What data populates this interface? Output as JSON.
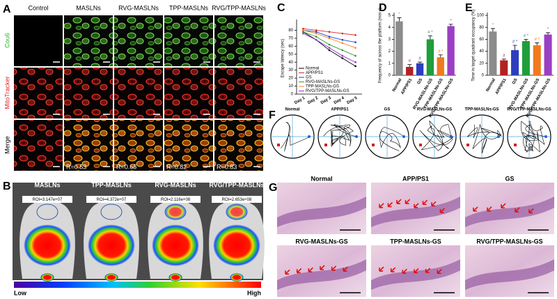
{
  "panel_letters": [
    "A",
    "B",
    "C",
    "D",
    "E",
    "F",
    "G"
  ],
  "panel_a": {
    "columns": [
      "Control",
      "MASLNs",
      "RVG-MASLNs",
      "TPP-MASLNs",
      "RVG/TPP-MASLNs"
    ],
    "rows": [
      "Cou6",
      "MitoTracker",
      "Merge"
    ],
    "r_values": [
      "R=0.53",
      "R=0.65",
      "R=0.82",
      "R=0.83"
    ]
  },
  "panel_b": {
    "labels": [
      "MASLNs",
      "TPP-MASLNs",
      "RVG-MASLNs",
      "RVG/TPP-MASLNs"
    ],
    "roi": [
      "ROI=3.147e+07",
      "ROI=4.372e+07",
      "ROI=2.116e+08",
      "ROI=2.653e+08"
    ],
    "scale": [
      "Low",
      "High"
    ]
  },
  "panel_f": {
    "labels": [
      "Normal",
      "APP/PS1",
      "GS",
      "RVG-MASLNs-GS",
      "TPP-MASLNs-GS",
      "RVG/TPP-MASLNs-GS"
    ]
  },
  "panel_g": {
    "labels": [
      "Normal",
      "APP/PS1",
      "GS",
      "RVG-MASLNs-GS",
      "TPP-MASLNs-GS",
      "RVG/TPP-MASLNs-GS"
    ]
  },
  "chart_data": [
    {
      "type": "line",
      "y_label": "Escape latency (sec)",
      "categories": [
        "Day 1",
        "Day 2",
        "Day 3",
        "Day 4",
        "Day 5"
      ],
      "ylim": [
        0,
        90
      ],
      "yticks": [
        0,
        10,
        20,
        30,
        40,
        50,
        60,
        70,
        80
      ],
      "series": [
        {
          "name": "Normal",
          "color": "#000000",
          "values": [
            78,
            68,
            55,
            45,
            35
          ]
        },
        {
          "name": "APP/PS1",
          "color": "#d62728",
          "values": [
            82,
            80,
            78,
            76,
            74
          ]
        },
        {
          "name": "GS",
          "color": "#1f3fd6",
          "values": [
            80,
            78,
            72,
            68,
            65
          ]
        },
        {
          "name": "RVG-MASLNs-GS",
          "color": "#2ca02c",
          "values": [
            78,
            72,
            62,
            55,
            48
          ]
        },
        {
          "name": "TPP-MASLNs-GS",
          "color": "#ff7f0e",
          "values": [
            80,
            76,
            70,
            64,
            58
          ]
        },
        {
          "name": "RVG/TPP-MASLNs-GS",
          "color": "#9b30d9",
          "values": [
            76,
            68,
            58,
            48,
            40
          ]
        }
      ]
    },
    {
      "type": "bar",
      "y_label": "Frequency of across the platform (min⁻¹)",
      "categories": [
        "Normal",
        "APP/PS1",
        "GS",
        "RVG-MASLNs-GS",
        "TPP-MASLNs-GS",
        "RVG/TPP-MASLNs-GS"
      ],
      "values": [
        4.5,
        0.7,
        1.0,
        3.0,
        1.5,
        4.1
      ],
      "errors": [
        0.3,
        0.2,
        0.1,
        0.3,
        0.2,
        0.15
      ],
      "colors": [
        "#8c8c8c",
        "#b22222",
        "#2b3fbf",
        "#1f9e3a",
        "#f07a1e",
        "#9b3fc2"
      ],
      "annotations": [
        "*",
        "#",
        "#",
        "# *",
        "# *",
        "*"
      ],
      "ylim": [
        0,
        5
      ],
      "yticks": [
        0,
        1,
        2,
        3,
        4,
        5
      ]
    },
    {
      "type": "bar",
      "y_label": "Time in target quadrant occupancy (%)",
      "categories": [
        "Normal",
        "APP/PS1",
        "GS",
        "RVG-MASLNs-GS",
        "TPP-MASLNs-GS",
        "RVG/TPP-MASLNs-GS"
      ],
      "values": [
        73,
        25,
        42,
        57,
        50,
        68
      ],
      "errors": [
        5,
        2,
        8,
        3,
        4,
        3
      ],
      "colors": [
        "#8c8c8c",
        "#b22222",
        "#2b3fbf",
        "#1f9e3a",
        "#f07a1e",
        "#9b3fc2"
      ],
      "annotations": [
        "*",
        "#",
        "# *",
        "# *",
        "# *",
        "*"
      ],
      "ylim": [
        0,
        100
      ],
      "yticks": [
        0,
        20,
        40,
        60,
        80,
        100
      ]
    }
  ]
}
